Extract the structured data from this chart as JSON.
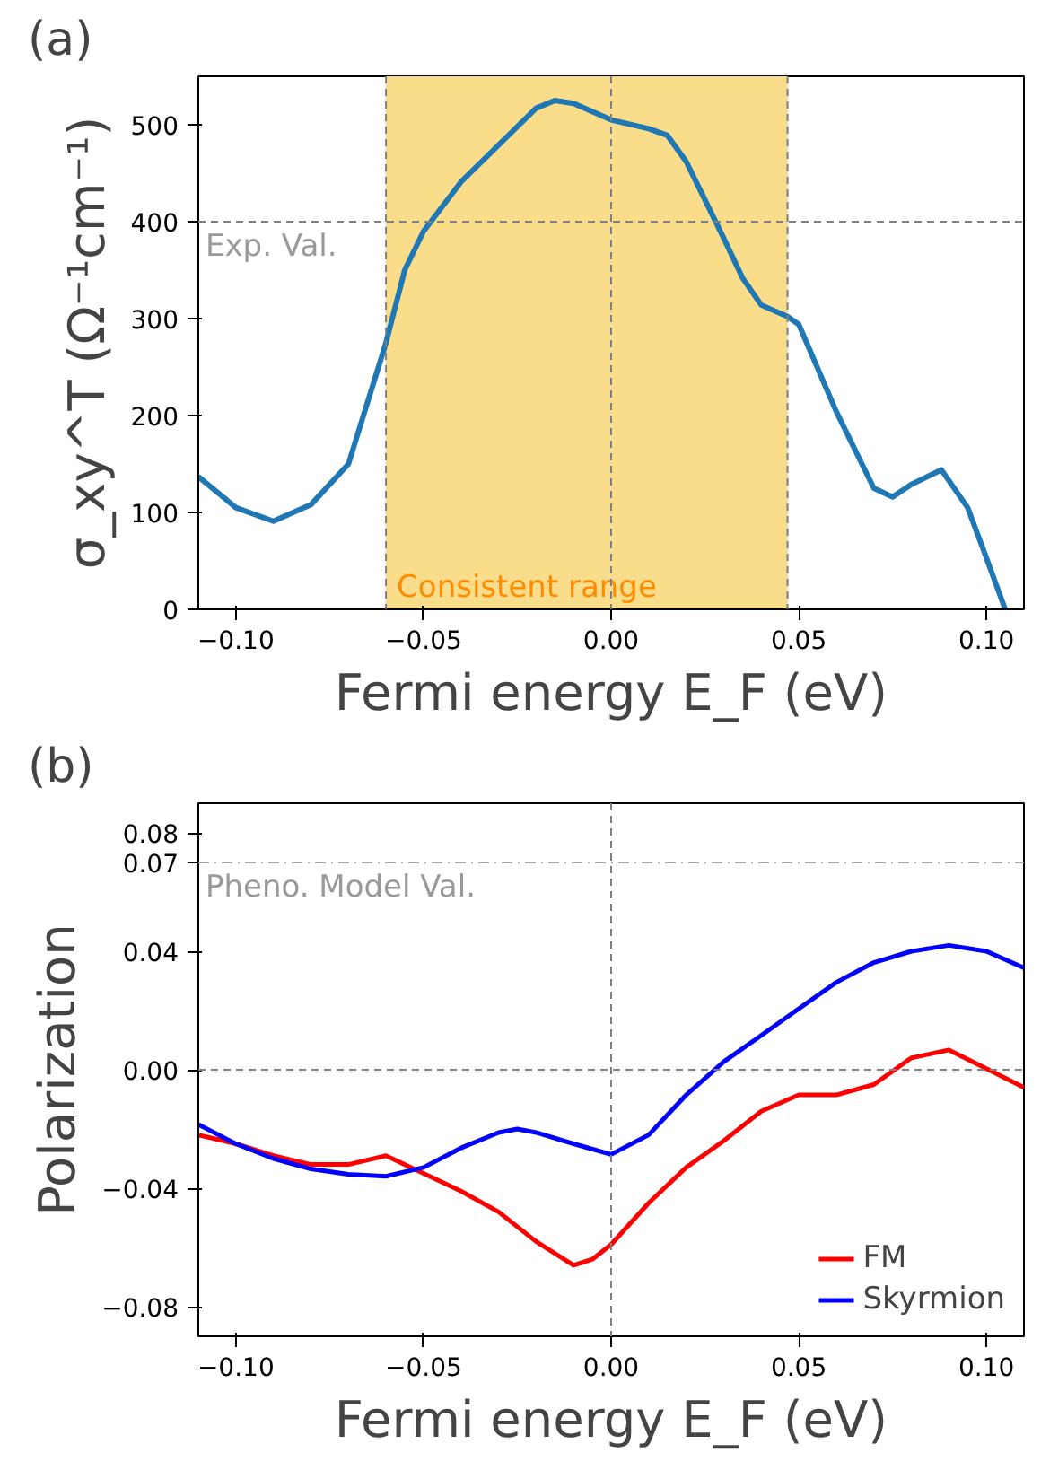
{
  "chart_data": [
    {
      "type": "line",
      "title": "(a)",
      "xlabel": "Fermi energy E_F (eV)",
      "ylabel": "σ_xy^T (Ω⁻¹cm⁻¹)",
      "x": [
        -0.11,
        -0.1,
        -0.09,
        -0.08,
        -0.07,
        -0.06,
        -0.055,
        -0.05,
        -0.04,
        -0.03,
        -0.02,
        -0.015,
        -0.01,
        0,
        0.01,
        0.015,
        0.02,
        0.03,
        0.035,
        0.04,
        0.047,
        0.05,
        0.06,
        0.07,
        0.075,
        0.08,
        0.088,
        0.095,
        0.1,
        0.105
      ],
      "series": [
        {
          "color": "#1f77b4",
          "values": [
            137,
            105,
            91,
            108,
            150,
            275,
            350,
            390,
            441,
            479,
            517,
            525,
            522,
            505,
            496,
            489,
            462,
            383,
            342,
            314,
            302,
            294,
            204,
            125,
            116,
            129,
            144,
            105,
            53,
            0
          ]
        }
      ],
      "xlim": [
        -0.11,
        0.11
      ],
      "ylim": [
        0,
        550
      ],
      "xticks": [
        {
          "value": -0.1,
          "label": "−0.10"
        },
        {
          "value": -0.05,
          "label": "−0.05"
        },
        {
          "value": 0,
          "label": "0.00"
        },
        {
          "value": 0.05,
          "label": "0.05"
        },
        {
          "value": 0.1,
          "label": "0.10"
        }
      ],
      "yticks": [
        0,
        100,
        200,
        300,
        400,
        500
      ],
      "ref_lines": [
        {
          "axis": "y",
          "value": 400,
          "label": "Exp. Val.",
          "color": "#808080",
          "line_style": "dashed"
        },
        {
          "axis": "x",
          "value": 0,
          "label": null,
          "color": "#808080",
          "line_style": "dashed"
        }
      ],
      "bands": [
        {
          "axis": "x",
          "from": -0.06,
          "to": 0.047,
          "label": "Consistent range",
          "color": "#f9dd8b"
        }
      ],
      "grid": false,
      "legend": false,
      "line_style": "solid",
      "marker": "none"
    },
    {
      "type": "line",
      "title": "(b)",
      "xlabel": "Fermi energy E_F (eV)",
      "ylabel": "Polarization",
      "x": [
        -0.11,
        -0.1,
        -0.09,
        -0.08,
        -0.07,
        -0.06,
        -0.05,
        -0.04,
        -0.03,
        -0.02,
        -0.01,
        -0.005,
        0,
        0.01,
        0.02,
        0.03,
        0.04,
        0.05,
        0.06,
        0.07,
        0.08,
        0.09,
        0.1,
        0.11
      ],
      "series": [
        {
          "name": "FM",
          "color": "#ff0000",
          "values": [
            -0.022,
            -0.025,
            -0.029,
            -0.032,
            -0.032,
            -0.029,
            -0.035,
            -0.041,
            -0.048,
            -0.058,
            -0.066,
            -0.064,
            -0.059,
            -0.045,
            -0.033,
            -0.024,
            -0.014,
            -0.0085,
            -0.0085,
            -0.005,
            0.004,
            0.0067,
            0.0004,
            -0.006
          ]
        },
        {
          "name": "Skyrmion",
          "color": "#0000ff",
          "x": [
            -0.11,
            -0.1,
            -0.09,
            -0.08,
            -0.07,
            -0.06,
            -0.05,
            -0.04,
            -0.03,
            -0.025,
            -0.02,
            -0.01,
            0,
            0.01,
            0.02,
            0.03,
            0.04,
            0.05,
            0.06,
            0.07,
            0.08,
            0.09,
            0.1,
            0.11
          ],
          "values": [
            -0.0185,
            -0.025,
            -0.03,
            -0.0335,
            -0.0353,
            -0.036,
            -0.033,
            -0.0264,
            -0.0212,
            -0.02,
            -0.0212,
            -0.025,
            -0.0286,
            -0.022,
            -0.0085,
            0.0027,
            0.0116,
            0.0206,
            0.0295,
            0.0362,
            0.04,
            0.042,
            0.04,
            0.0344
          ]
        }
      ],
      "xlim": [
        -0.11,
        0.11
      ],
      "ylim": [
        -0.09,
        0.09
      ],
      "xticks": [
        {
          "value": -0.1,
          "label": "−0.10"
        },
        {
          "value": -0.05,
          "label": "−0.05"
        },
        {
          "value": 0,
          "label": "0.00"
        },
        {
          "value": 0.05,
          "label": "0.05"
        },
        {
          "value": 0.1,
          "label": "0.10"
        }
      ],
      "yticks": [
        {
          "value": -0.08,
          "label": "−0.08"
        },
        {
          "value": -0.04,
          "label": "−0.04"
        },
        {
          "value": 0,
          "label": "0.00"
        },
        {
          "value": 0.04,
          "label": "0.04"
        },
        {
          "value": 0.07,
          "label": "0.07"
        },
        {
          "value": 0.08,
          "label": "0.08"
        }
      ],
      "ref_lines": [
        {
          "axis": "y",
          "value": 0.07,
          "label": "Pheno. Model Val.",
          "color": "#a0a0a0",
          "line_style": "dashdot"
        },
        {
          "axis": "y",
          "value": 0,
          "label": null,
          "color": "#808080",
          "line_style": "dashed"
        },
        {
          "axis": "x",
          "value": 0,
          "label": null,
          "color": "#808080",
          "line_style": "dashed"
        }
      ],
      "grid": false,
      "legend": "bottom right",
      "line_style": "solid",
      "marker": "none"
    }
  ]
}
